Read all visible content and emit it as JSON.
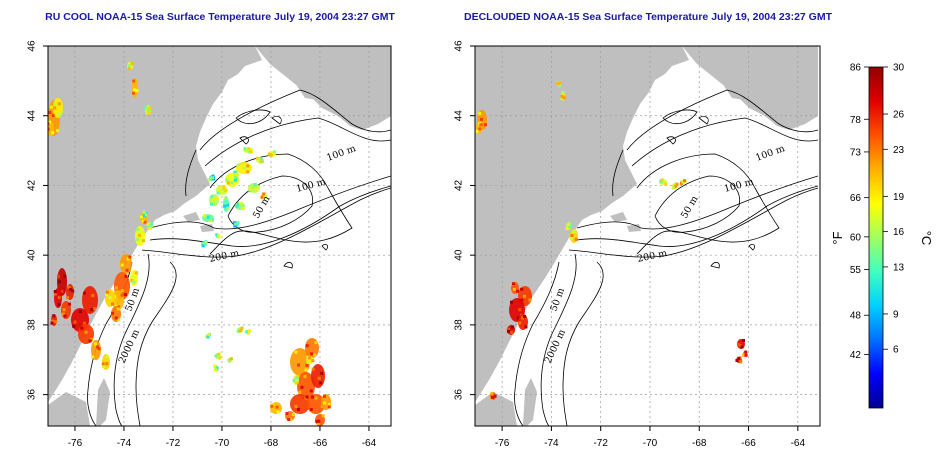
{
  "panels": [
    {
      "title": "RU COOL NOAA-15 Sea Surface Temperature July 19, 2004 23:27 GMT",
      "contour_labels": [
        "100 m",
        "100 m",
        "50 m",
        "200 m",
        "50 m",
        "2000 m"
      ]
    },
    {
      "title": "DECLOUDED NOAA-15 Sea Surface Temperature July 19, 2004 23:27 GMT",
      "contour_labels": [
        "100 m",
        "100 m",
        "50 m",
        "200 m",
        "50 m",
        "2000 m"
      ]
    }
  ],
  "axes": {
    "x_ticks": [
      "-76",
      "-74",
      "-72",
      "-70",
      "-68",
      "-66",
      "-64"
    ],
    "x_values": [
      -76,
      -74,
      -72,
      -70,
      -68,
      -66,
      -64
    ],
    "y_ticks": [
      "36",
      "38",
      "40",
      "42",
      "44",
      "46"
    ],
    "y_values": [
      36,
      38,
      40,
      42,
      44,
      46
    ],
    "lon_range": [
      -77.1,
      -63.1
    ],
    "lat_range": [
      35.1,
      46
    ]
  },
  "colorbar": {
    "f_labels": [
      "86",
      "78",
      "73",
      "66",
      "60",
      "55",
      "48",
      "42"
    ],
    "f_values": [
      86,
      78,
      73,
      66,
      60,
      55,
      48,
      42
    ],
    "c_labels": [
      "30",
      "26",
      "23",
      "19",
      "16",
      "13",
      "9",
      "6"
    ],
    "c_values": [
      30,
      26,
      23,
      19,
      16,
      13,
      9,
      6
    ],
    "f_unit": "°F",
    "c_unit": "°C",
    "c_range": [
      1,
      30
    ],
    "colors": [
      "#000090",
      "#0000ff",
      "#0070ff",
      "#00d0ff",
      "#40ffc0",
      "#a0ff60",
      "#ffff00",
      "#ffb000",
      "#ff5000",
      "#e00000",
      "#900000"
    ]
  },
  "colors": {
    "land": "#bfbfbf",
    "ocean": "#ffffff",
    "contour": "#000000",
    "grid": "#9a9a9a",
    "title": "#1a1aa6"
  }
}
